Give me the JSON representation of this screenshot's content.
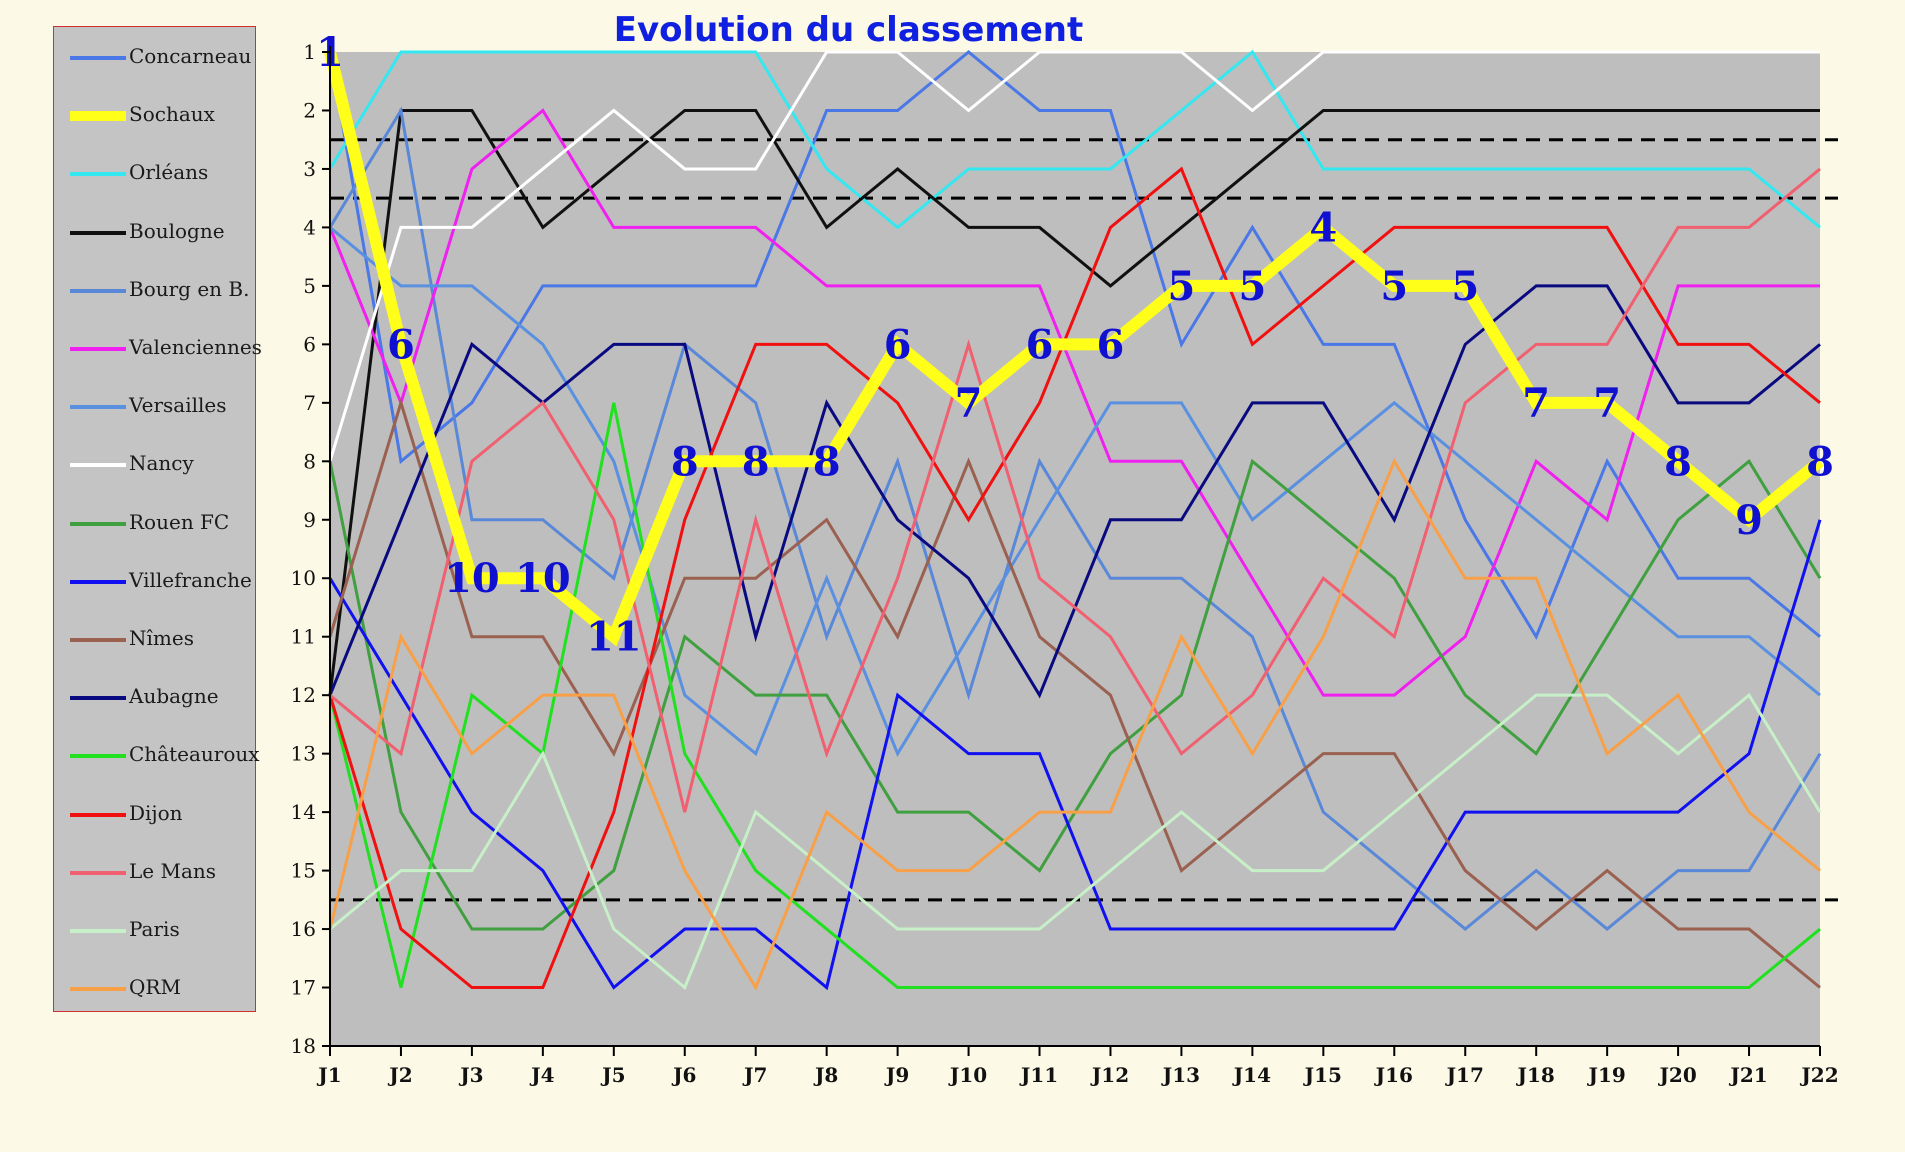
{
  "chart_data": {
    "type": "line",
    "title": "Evolution du classement",
    "x": [
      "J1",
      "J2",
      "J3",
      "J4",
      "J5",
      "J6",
      "J7",
      "J8",
      "J9",
      "J10",
      "J11",
      "J12",
      "J13",
      "J14",
      "J15",
      "J16",
      "J17",
      "J18",
      "J19",
      "J20",
      "J21",
      "J22"
    ],
    "y_ticks": [
      "1",
      "2",
      "3",
      "4",
      "5",
      "6",
      "7",
      "8",
      "9",
      "10",
      "11",
      "12",
      "13",
      "14",
      "15",
      "16",
      "17",
      "18"
    ],
    "ylim": [
      18,
      1
    ],
    "y_inverted": true,
    "background": "#BEBEBE",
    "reference_lines": [
      2.5,
      3.5,
      15.5
    ],
    "legend_position": "left",
    "series": [
      {
        "name": "Concarneau",
        "color": "#4A78E6",
        "width": 3,
        "values": [
          1,
          8,
          7,
          5,
          5,
          5,
          5,
          2,
          2,
          1,
          2,
          2,
          6,
          4,
          6,
          6,
          9,
          11,
          8,
          10,
          10,
          11
        ]
      },
      {
        "name": "Sochaux",
        "color": "#FFFF1A",
        "width": 12,
        "values": [
          1,
          6,
          10,
          10,
          11,
          8,
          8,
          8,
          6,
          7,
          6,
          6,
          5,
          5,
          4,
          5,
          5,
          7,
          7,
          8,
          9,
          8
        ]
      },
      {
        "name": "Orléans",
        "color": "#33E8F0",
        "width": 3,
        "values": [
          3,
          1,
          1,
          1,
          1,
          1,
          1,
          3,
          4,
          3,
          3,
          3,
          2,
          1,
          3,
          3,
          3,
          3,
          3,
          3,
          3,
          4
        ]
      },
      {
        "name": "Boulogne",
        "color": "#101010",
        "width": 3,
        "values": [
          12,
          2,
          2,
          4,
          3,
          2,
          2,
          4,
          3,
          4,
          4,
          5,
          4,
          3,
          2,
          2,
          2,
          2,
          2,
          2,
          2,
          2
        ]
      },
      {
        "name": "Bourg en B.",
        "color": "#5A88D8",
        "width": 3,
        "values": [
          4,
          2,
          9,
          9,
          10,
          6,
          7,
          11,
          8,
          12,
          8,
          10,
          10,
          11,
          14,
          15,
          16,
          15,
          16,
          15,
          15,
          13
        ]
      },
      {
        "name": "Valenciennes",
        "color": "#F020F0",
        "width": 3,
        "values": [
          4,
          7,
          3,
          2,
          4,
          4,
          4,
          5,
          5,
          5,
          5,
          8,
          8,
          10,
          12,
          12,
          11,
          8,
          9,
          5,
          5,
          5
        ]
      },
      {
        "name": "Versailles",
        "color": "#5A90E0",
        "width": 3,
        "values": [
          4,
          5,
          5,
          6,
          8,
          12,
          13,
          10,
          13,
          11,
          9,
          7,
          7,
          9,
          8,
          7,
          8,
          9,
          10,
          11,
          11,
          12
        ]
      },
      {
        "name": "Nancy",
        "color": "#FFFFFF",
        "width": 3,
        "values": [
          8,
          4,
          4,
          3,
          2,
          3,
          3,
          1,
          1,
          2,
          1,
          1,
          1,
          2,
          1,
          1,
          1,
          1,
          1,
          1,
          1,
          1
        ]
      },
      {
        "name": "Rouen FC",
        "color": "#40A040",
        "width": 3,
        "values": [
          8,
          14,
          16,
          16,
          15,
          11,
          12,
          12,
          14,
          14,
          15,
          13,
          12,
          8,
          9,
          10,
          12,
          13,
          11,
          9,
          8,
          10
        ]
      },
      {
        "name": "Villefranche",
        "color": "#1010F0",
        "width": 3,
        "values": [
          10,
          12,
          14,
          15,
          17,
          16,
          16,
          17,
          12,
          13,
          13,
          16,
          16,
          16,
          16,
          16,
          14,
          14,
          14,
          14,
          13,
          9
        ]
      },
      {
        "name": "Nîmes",
        "color": "#9A6050",
        "width": 3,
        "values": [
          11,
          7,
          11,
          11,
          13,
          10,
          10,
          9,
          11,
          8,
          11,
          12,
          15,
          14,
          13,
          13,
          15,
          16,
          15,
          16,
          16,
          17
        ]
      },
      {
        "name": "Aubagne",
        "color": "#0A0A80",
        "width": 3,
        "values": [
          12,
          9,
          6,
          7,
          6,
          6,
          11,
          7,
          9,
          10,
          12,
          9,
          9,
          7,
          7,
          9,
          6,
          5,
          5,
          7,
          7,
          6
        ]
      },
      {
        "name": "Châteauroux",
        "color": "#20E020",
        "width": 3,
        "values": [
          12,
          17,
          12,
          13,
          7,
          13,
          15,
          16,
          17,
          17,
          17,
          17,
          17,
          17,
          17,
          17,
          17,
          17,
          17,
          17,
          17,
          16
        ]
      },
      {
        "name": "Dijon",
        "color": "#F01010",
        "width": 3,
        "values": [
          12,
          16,
          17,
          17,
          14,
          9,
          6,
          6,
          7,
          9,
          7,
          4,
          3,
          6,
          5,
          4,
          4,
          4,
          4,
          6,
          6,
          7
        ]
      },
      {
        "name": "Le Mans",
        "color": "#F06070",
        "width": 3,
        "values": [
          12,
          13,
          8,
          7,
          9,
          14,
          9,
          13,
          10,
          6,
          10,
          11,
          13,
          12,
          10,
          11,
          7,
          6,
          6,
          4,
          4,
          3
        ]
      },
      {
        "name": "Paris",
        "color": "#C8F0C8",
        "width": 3,
        "values": [
          16,
          15,
          15,
          13,
          16,
          17,
          14,
          15,
          16,
          16,
          16,
          15,
          14,
          15,
          15,
          14,
          13,
          12,
          12,
          13,
          12,
          14
        ]
      },
      {
        "name": "QRM",
        "color": "#F8A048",
        "width": 3,
        "values": [
          16,
          11,
          13,
          12,
          12,
          15,
          17,
          14,
          15,
          15,
          14,
          14,
          11,
          13,
          11,
          8,
          10,
          10,
          13,
          12,
          14,
          15
        ]
      }
    ],
    "annotations": [
      {
        "x": "J1",
        "y": 1,
        "text": "1"
      },
      {
        "x": "J2",
        "y": 6,
        "text": "6"
      },
      {
        "x": "J3",
        "y": 10,
        "text": "10"
      },
      {
        "x": "J4",
        "y": 10,
        "text": "10"
      },
      {
        "x": "J5",
        "y": 11,
        "text": "11"
      },
      {
        "x": "J6",
        "y": 8,
        "text": "8"
      },
      {
        "x": "J7",
        "y": 8,
        "text": "8"
      },
      {
        "x": "J8",
        "y": 8,
        "text": "8"
      },
      {
        "x": "J9",
        "y": 6,
        "text": "6"
      },
      {
        "x": "J10",
        "y": 7,
        "text": "7"
      },
      {
        "x": "J11",
        "y": 6,
        "text": "6"
      },
      {
        "x": "J12",
        "y": 6,
        "text": "6"
      },
      {
        "x": "J13",
        "y": 5,
        "text": "5"
      },
      {
        "x": "J14",
        "y": 5,
        "text": "5"
      },
      {
        "x": "J15",
        "y": 4,
        "text": "4"
      },
      {
        "x": "J16",
        "y": 5,
        "text": "5"
      },
      {
        "x": "J17",
        "y": 5,
        "text": "5"
      },
      {
        "x": "J18",
        "y": 7,
        "text": "7"
      },
      {
        "x": "J19",
        "y": 7,
        "text": "7"
      },
      {
        "x": "J20",
        "y": 8,
        "text": "8"
      },
      {
        "x": "J21",
        "y": 9,
        "text": "9"
      },
      {
        "x": "J22",
        "y": 8,
        "text": "8"
      }
    ]
  }
}
